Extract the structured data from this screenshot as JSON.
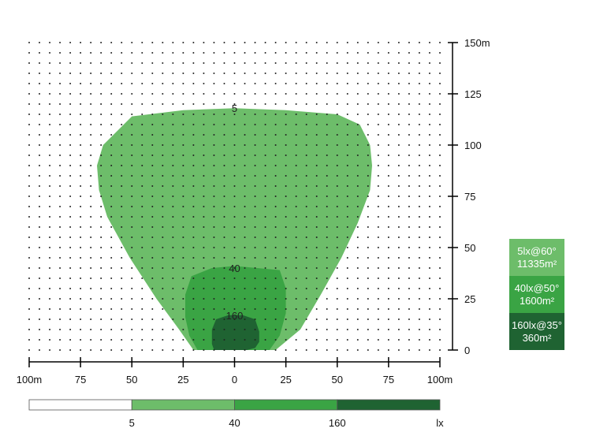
{
  "chart_data": {
    "type": "area",
    "title": "",
    "xlabel": "",
    "ylabel": "",
    "x_unit": "m",
    "xlim": [
      -100,
      100
    ],
    "ylim": [
      0,
      150
    ],
    "x_ticks": [
      {
        "value": -100,
        "label": "100m"
      },
      {
        "value": -75,
        "label": "75"
      },
      {
        "value": -50,
        "label": "50"
      },
      {
        "value": -25,
        "label": "25"
      },
      {
        "value": 0,
        "label": "0"
      },
      {
        "value": 25,
        "label": "25"
      },
      {
        "value": 50,
        "label": "50"
      },
      {
        "value": 75,
        "label": "75"
      },
      {
        "value": 100,
        "label": "100m"
      }
    ],
    "y_ticks": [
      {
        "value": 0,
        "label": "0"
      },
      {
        "value": 25,
        "label": "25"
      },
      {
        "value": 50,
        "label": "50"
      },
      {
        "value": 75,
        "label": "75"
      },
      {
        "value": 100,
        "label": "100"
      },
      {
        "value": 125,
        "label": "125"
      },
      {
        "value": 150,
        "label": "150m"
      }
    ],
    "grid_dots": true,
    "grid_step": 5,
    "series": [
      {
        "label": "5",
        "color": "#6dbd6a",
        "label_at": [
          0,
          118
        ],
        "points": [
          [
            -20,
            0
          ],
          [
            -27,
            10
          ],
          [
            -38,
            25
          ],
          [
            -51,
            45
          ],
          [
            -62,
            65
          ],
          [
            -66,
            78
          ],
          [
            -67,
            90
          ],
          [
            -64,
            100
          ],
          [
            -50,
            114
          ],
          [
            -25,
            117
          ],
          [
            0,
            118
          ],
          [
            25,
            117
          ],
          [
            50,
            115
          ],
          [
            61,
            110
          ],
          [
            66,
            100
          ],
          [
            67,
            90
          ],
          [
            66,
            78
          ],
          [
            60,
            62
          ],
          [
            52,
            45
          ],
          [
            42,
            27
          ],
          [
            32,
            10
          ],
          [
            20,
            0
          ]
        ]
      },
      {
        "label": "40",
        "color": "#3aa444",
        "label_at": [
          0,
          40
        ],
        "points": [
          [
            -18,
            0
          ],
          [
            -22,
            7
          ],
          [
            -24,
            16
          ],
          [
            -24,
            27
          ],
          [
            -21,
            36
          ],
          [
            -11,
            40
          ],
          [
            0,
            41
          ],
          [
            11,
            40
          ],
          [
            22,
            39
          ],
          [
            25,
            30
          ],
          [
            25,
            18
          ],
          [
            22,
            7
          ],
          [
            17,
            0
          ]
        ]
      },
      {
        "label": "160",
        "color": "#1f6332",
        "label_at": [
          0,
          17
        ],
        "points": [
          [
            -11,
            0
          ],
          [
            -10,
            0
          ],
          [
            -11,
            3
          ],
          [
            -11,
            10
          ],
          [
            -9,
            15
          ],
          [
            -3,
            17
          ],
          [
            4,
            17
          ],
          [
            10,
            15
          ],
          [
            12,
            9
          ],
          [
            12,
            4
          ],
          [
            10,
            1
          ],
          [
            6,
            0
          ],
          [
            -6,
            0
          ]
        ]
      }
    ],
    "scale_bar": {
      "segments": [
        "#ffffff",
        "#6dbd6a",
        "#3aa444",
        "#1f6332"
      ],
      "labels": [
        "5",
        "40",
        "160"
      ],
      "unit": "lx"
    },
    "legend": [
      {
        "line1": "5lx@60°",
        "line2": "11335m²",
        "color": "#6dbd6a"
      },
      {
        "line1": "40lx@50°",
        "line2": "1600m²",
        "color": "#3aa444"
      },
      {
        "line1": "160lx@35°",
        "line2": "360m²",
        "color": "#1f6332"
      }
    ]
  }
}
